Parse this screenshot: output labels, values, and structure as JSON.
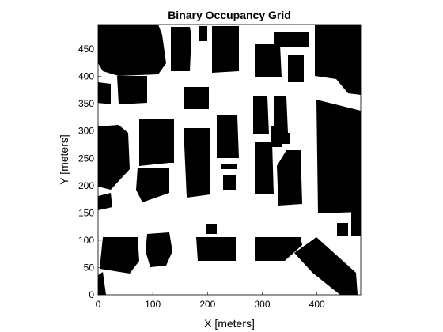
{
  "map": {
    "title": "Binary Occupancy Grid",
    "xlabel": "X [meters]",
    "ylabel": "Y [meters]",
    "xlim": [
      0,
      480
    ],
    "ylim": [
      0,
      495
    ],
    "x_ticks": [
      0,
      100,
      200,
      300,
      400
    ],
    "y_ticks": [
      0,
      50,
      100,
      150,
      200,
      250,
      300,
      350,
      400,
      450
    ],
    "colors": {
      "occupied": "#000000",
      "free": "#ffffff",
      "axis": "#000000"
    }
  }
}
